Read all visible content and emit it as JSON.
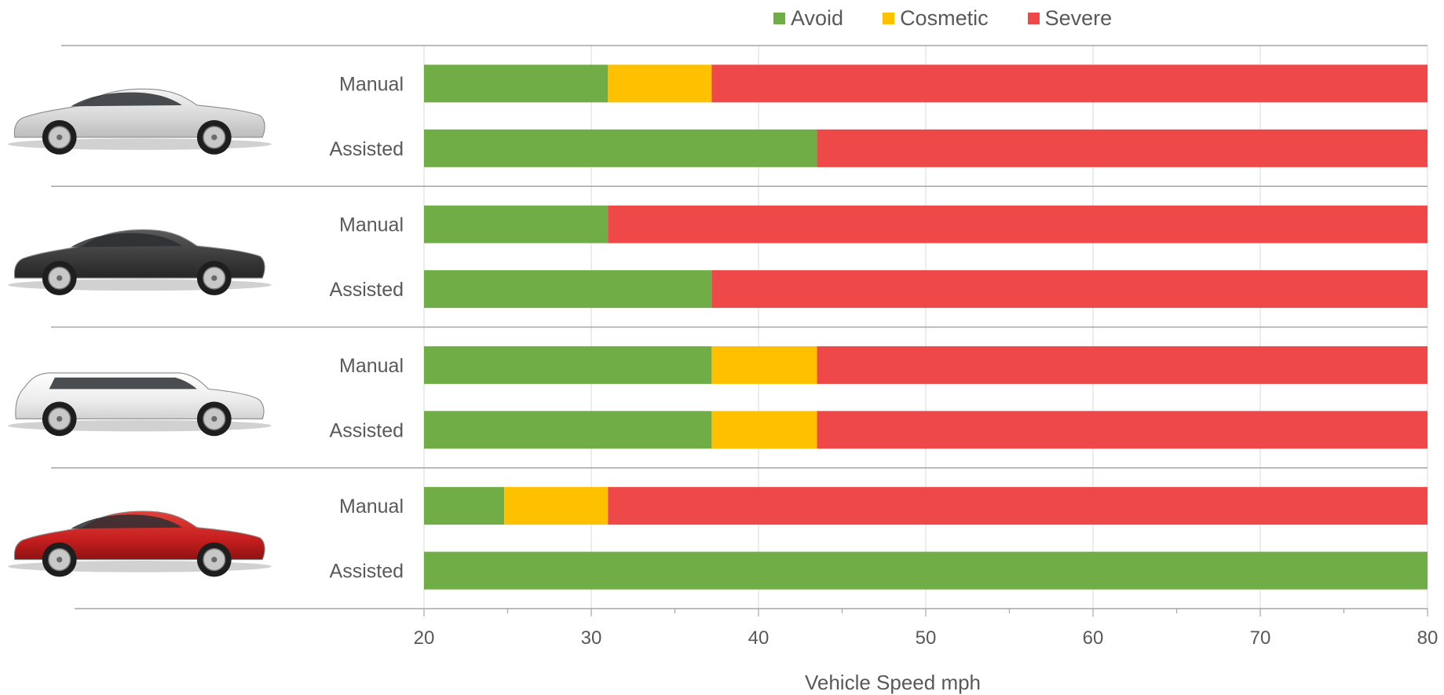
{
  "chart_data": {
    "type": "bar",
    "orientation": "horizontal",
    "stacked": true,
    "xlabel": "Vehicle Speed mph",
    "xlim": [
      20,
      80
    ],
    "xticks": [
      20,
      30,
      40,
      50,
      60,
      70,
      80
    ],
    "grid": true,
    "legend_position": "top",
    "series": [
      {
        "name": "Avoid",
        "color": "#70ad47"
      },
      {
        "name": "Cosmetic",
        "color": "#ffc000"
      },
      {
        "name": "Severe",
        "color": "#ef4848"
      }
    ],
    "groups": [
      {
        "vehicle_icon": "silver-sedan",
        "rows": [
          {
            "label": "Manual",
            "Avoid": [
              20,
              31
            ],
            "Cosmetic": [
              31,
              37.2
            ],
            "Severe": [
              37.2,
              80
            ]
          },
          {
            "label": "Assisted",
            "Avoid": [
              20,
              43.5
            ],
            "Cosmetic": null,
            "Severe": [
              43.5,
              80
            ]
          }
        ]
      },
      {
        "vehicle_icon": "dark-grey-sedan",
        "rows": [
          {
            "label": "Manual",
            "Avoid": [
              20,
              31
            ],
            "Cosmetic": null,
            "Severe": [
              31,
              80
            ]
          },
          {
            "label": "Assisted",
            "Avoid": [
              20,
              37.2
            ],
            "Cosmetic": null,
            "Severe": [
              37.2,
              80
            ]
          }
        ]
      },
      {
        "vehicle_icon": "white-suv",
        "rows": [
          {
            "label": "Manual",
            "Avoid": [
              20,
              37.2
            ],
            "Cosmetic": [
              37.2,
              43.5
            ],
            "Severe": [
              43.5,
              80
            ]
          },
          {
            "label": "Assisted",
            "Avoid": [
              20,
              37.2
            ],
            "Cosmetic": [
              37.2,
              43.5
            ],
            "Severe": [
              43.5,
              80
            ]
          }
        ]
      },
      {
        "vehicle_icon": "red-sedan",
        "rows": [
          {
            "label": "Manual",
            "Avoid": [
              20,
              24.8
            ],
            "Cosmetic": [
              24.8,
              31
            ],
            "Severe": [
              31,
              80
            ]
          },
          {
            "label": "Assisted",
            "Avoid": [
              20,
              80
            ],
            "Cosmetic": null,
            "Severe": null
          }
        ]
      }
    ]
  }
}
